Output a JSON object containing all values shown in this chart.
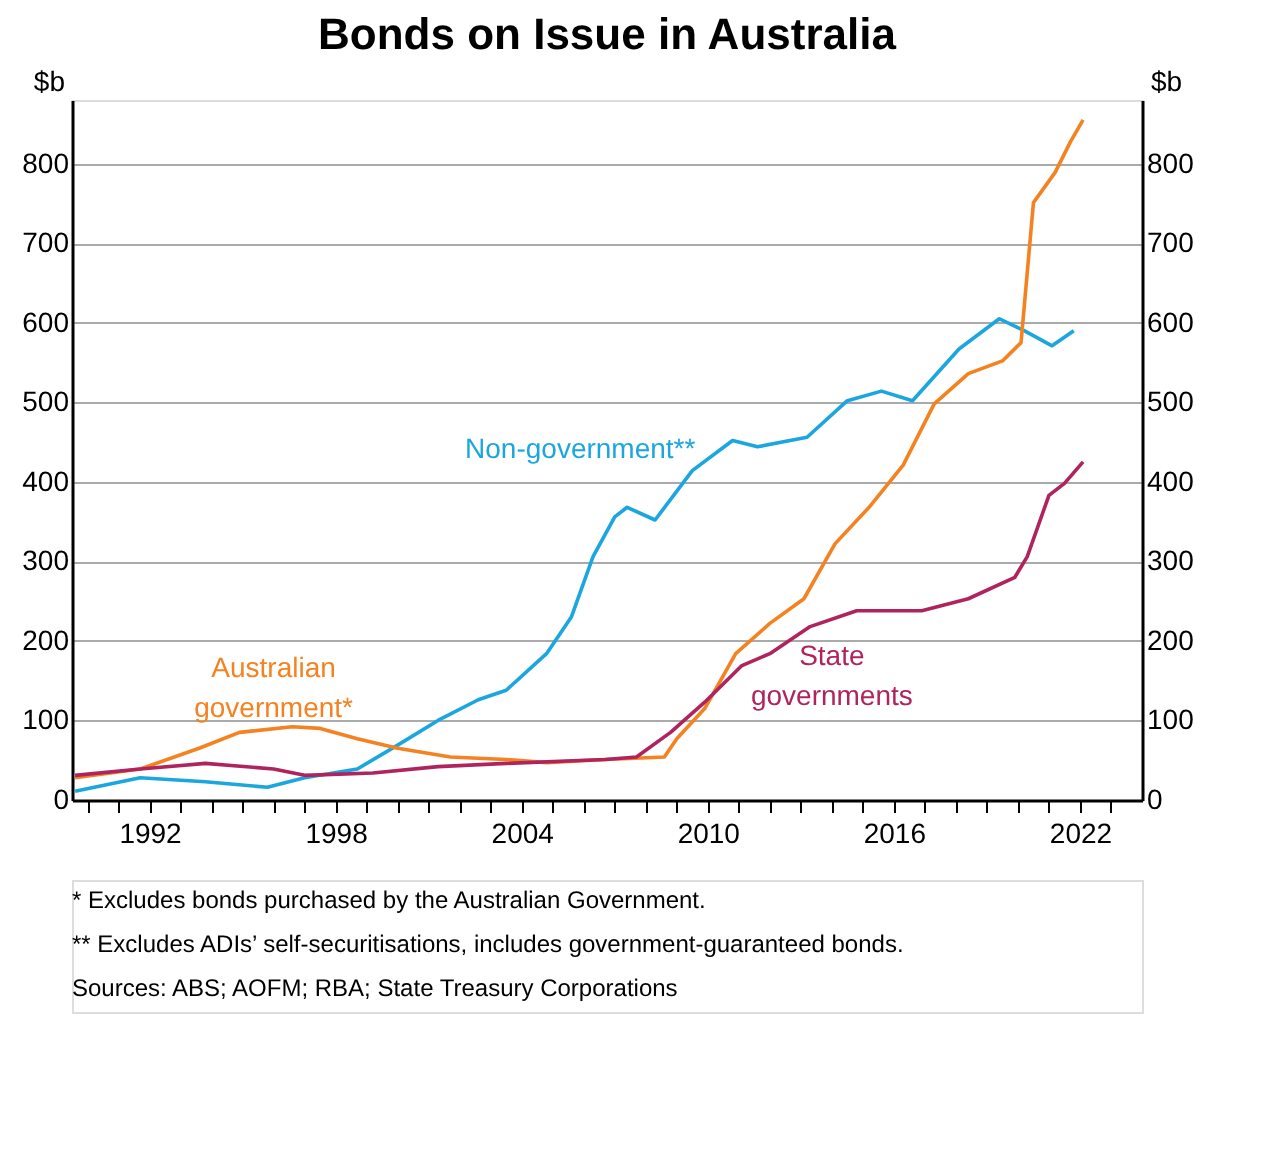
{
  "chart_data": {
    "type": "line",
    "title": "Bonds on Issue in Australia",
    "ylabel": "$b",
    "y2label": "$b",
    "xlim": [
      1989.5,
      2024
    ],
    "xticks": [
      {
        "value": 1990,
        "label": null
      },
      {
        "value": 1991,
        "label": null
      },
      1992,
      {
        "value": 1993,
        "label": null
      },
      {
        "value": 1994,
        "label": null
      },
      {
        "value": 1995,
        "label": null
      },
      {
        "value": 1996,
        "label": null
      },
      {
        "value": 1997,
        "label": null
      },
      1998,
      {
        "value": 1999,
        "label": null
      },
      {
        "value": 2000,
        "label": null
      },
      {
        "value": 2001,
        "label": null
      },
      {
        "value": 2002,
        "label": null
      },
      {
        "value": 2003,
        "label": null
      },
      2004,
      {
        "value": 2005,
        "label": null
      },
      {
        "value": 2006,
        "label": null
      },
      {
        "value": 2007,
        "label": null
      },
      {
        "value": 2008,
        "label": null
      },
      {
        "value": 2009,
        "label": null
      },
      2010,
      {
        "value": 2011,
        "label": null
      },
      {
        "value": 2012,
        "label": null
      },
      {
        "value": 2013,
        "label": null
      },
      {
        "value": 2014,
        "label": null
      },
      {
        "value": 2015,
        "label": null
      },
      2016,
      {
        "value": 2017,
        "label": null
      },
      {
        "value": 2018,
        "label": null
      },
      {
        "value": 2019,
        "label": null
      },
      {
        "value": 2020,
        "label": null
      },
      {
        "value": 2021,
        "label": null
      },
      2022,
      {
        "value": 2023,
        "label": null
      }
    ],
    "ylim": [
      0,
      880
    ],
    "yticks": [
      0,
      100,
      200,
      300,
      400,
      500,
      600,
      700,
      800
    ],
    "y2lim": [
      0,
      880
    ],
    "y2ticks": [
      0,
      100,
      200,
      300,
      400,
      500,
      600,
      700,
      800
    ],
    "grid": "y",
    "legend": false,
    "series": [
      {
        "name": "Non-government**",
        "color": "#1ba6df",
        "x": [
          1989.6,
          1991.7,
          1993.8,
          1995.8,
          1997.0,
          1998.7,
          2000.0,
          2001.3,
          2002.6,
          2003.5,
          2004.8,
          2005.6,
          2006.3,
          2007.0,
          2007.4,
          2008.3,
          2009.5,
          2010.8,
          2011.6,
          2013.2,
          2014.5,
          2015.6,
          2016.6,
          2018.1,
          2019.4,
          2020.2,
          2021.1,
          2021.8
        ],
        "values": [
          11,
          28,
          23,
          16,
          28,
          39,
          69,
          100,
          126,
          138,
          184,
          230,
          306,
          356,
          368,
          352,
          414,
          452,
          444,
          456,
          502,
          514,
          502,
          567,
          605,
          590,
          571,
          590
        ]
      },
      {
        "name": "Australian government*",
        "color": "#f58220",
        "x": [
          1989.6,
          1991.7,
          1993.6,
          1994.9,
          1996.6,
          1997.5,
          1998.7,
          2000.0,
          2001.7,
          2003.5,
          2004.8,
          2006.7,
          2008.6,
          2009.0,
          2009.9,
          2010.9,
          2012.0,
          2013.1,
          2014.1,
          2015.2,
          2016.3,
          2017.3,
          2018.4,
          2019.5,
          2020.1,
          2020.5,
          2021.2,
          2021.7,
          2022.1
        ],
        "values": [
          28,
          39,
          65,
          85,
          92,
          90,
          77,
          65,
          54,
          51,
          47,
          51,
          54,
          77,
          115,
          184,
          222,
          253,
          322,
          368,
          421,
          498,
          536,
          552,
          575,
          751,
          789,
          828,
          855
        ]
      },
      {
        "name": "State governments",
        "color": "#b0245e",
        "x": [
          1989.6,
          1991.7,
          1993.8,
          1996.0,
          1997.0,
          1999.2,
          2001.3,
          2003.5,
          2006.7,
          2007.7,
          2008.8,
          2009.9,
          2011.1,
          2012.0,
          2013.3,
          2014.8,
          2016.9,
          2018.4,
          2019.9,
          2020.3,
          2021.0,
          2021.5,
          2022.1
        ],
        "values": [
          31,
          39,
          46,
          39,
          31,
          34,
          42,
          46,
          51,
          54,
          85,
          123,
          169,
          184,
          218,
          238,
          238,
          253,
          280,
          306,
          383,
          398,
          425
        ]
      }
    ],
    "annotations": [
      "*      Excludes bonds purchased by the Australian Government.",
      "**     Excludes ADIs’ self-securitisations, includes government-guaranteed bonds.",
      "Sources: ABS; AOFM; RBA; State Treasury Corporations"
    ]
  }
}
